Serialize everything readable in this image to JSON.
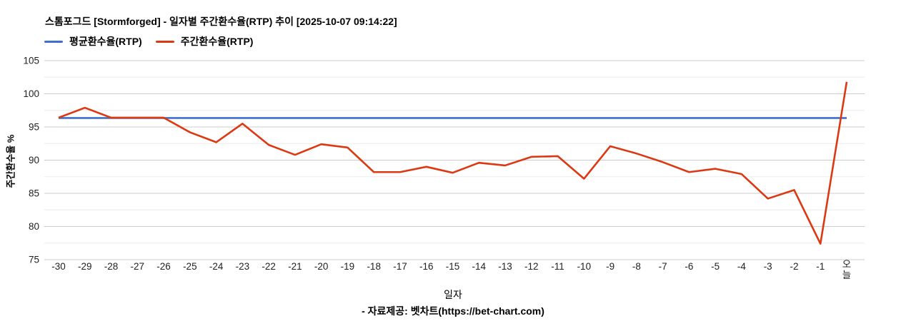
{
  "footer": {
    "text": "- 자료제공: 벳차트(https://bet-chart.com)"
  },
  "chart_data": {
    "type": "line",
    "title": "스톰포그드 [Stormforged] - 일자별 주간환수율(RTP) 추이 [2025-10-07 09:14:22]",
    "xlabel": "일자",
    "ylabel": "주간환수율 %",
    "ylim": [
      75,
      105
    ],
    "y_axis_ticks": [
      75,
      80,
      85,
      90,
      95,
      100,
      105
    ],
    "minor_grid_step": 2.5,
    "grid": true,
    "legend_position": "top-left",
    "categories": [
      "-30",
      "-29",
      "-28",
      "-27",
      "-26",
      "-25",
      "-24",
      "-23",
      "-22",
      "-21",
      "-20",
      "-19",
      "-18",
      "-17",
      "-16",
      "-15",
      "-14",
      "-13",
      "-12",
      "-11",
      "-10",
      "-9",
      "-8",
      "-7",
      "-6",
      "-5",
      "-4",
      "-3",
      "-2",
      "-1",
      "오늘"
    ],
    "series": [
      {
        "name": "평균환수율(RTP)",
        "color": "#3e6fd0",
        "values": [
          96.35,
          96.35,
          96.35,
          96.35,
          96.35,
          96.35,
          96.35,
          96.35,
          96.35,
          96.35,
          96.35,
          96.35,
          96.35,
          96.35,
          96.35,
          96.35,
          96.35,
          96.35,
          96.35,
          96.35,
          96.35,
          96.35,
          96.35,
          96.35,
          96.35,
          96.35,
          96.35,
          96.35,
          96.35,
          96.35,
          96.35
        ]
      },
      {
        "name": "주간환수율(RTP)",
        "color": "#dc3912",
        "values": [
          96.4,
          97.9,
          96.4,
          96.4,
          96.4,
          94.2,
          92.7,
          95.5,
          92.3,
          90.8,
          92.4,
          91.9,
          88.2,
          88.2,
          89.0,
          88.1,
          89.6,
          89.2,
          90.5,
          90.6,
          87.2,
          92.1,
          91.0,
          89.7,
          88.2,
          88.7,
          87.9,
          84.2,
          85.5,
          77.4,
          101.8
        ]
      }
    ],
    "grid_colors": {
      "major": "#cccccc",
      "minor": "#ececec"
    },
    "tick_color": "#222222"
  }
}
